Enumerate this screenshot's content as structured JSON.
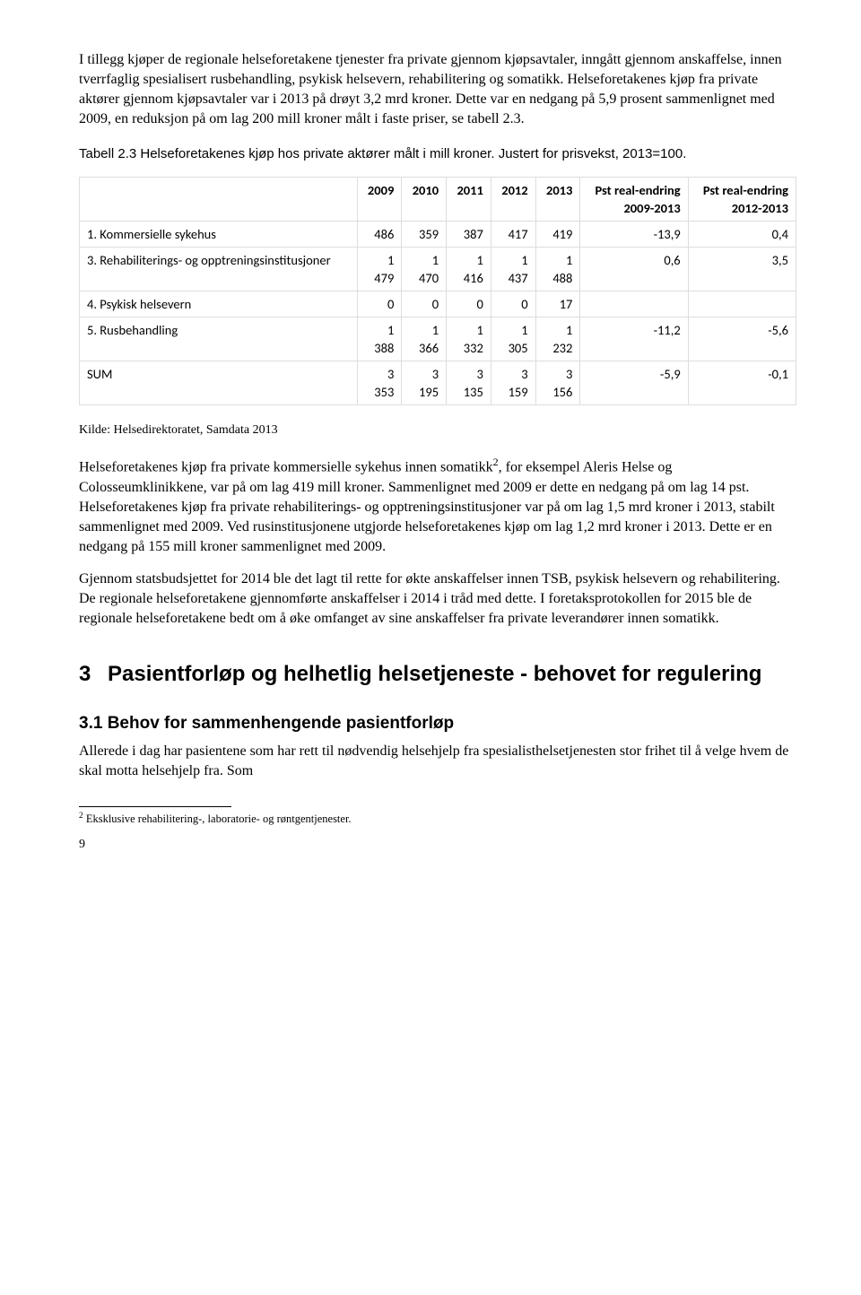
{
  "para1": "I tillegg kjøper de regionale helseforetakene tjenester fra private gjennom kjøpsavtaler, inngått gjennom anskaffelse, innen tverrfaglig spesialisert rusbehandling, psykisk helsevern, rehabilitering og somatikk. Helseforetakenes kjøp fra private aktører gjennom kjøpsavtaler var i 2013 på drøyt 3,2 mrd kroner. Dette var en nedgang på 5,9 prosent sammenlignet med 2009, en reduksjon på om lag 200 mill kroner målt i faste priser, se tabell 2.3.",
  "table_caption": "Tabell 2.3 Helseforetakenes kjøp hos private aktører målt i mill kroner. Justert for prisvekst, 2013=100.",
  "table": {
    "headers": [
      "",
      "2009",
      "2010",
      "2011",
      "2012",
      "2013",
      "Pst real-endring 2009-2013",
      "Pst real-endring 2012-2013"
    ],
    "rows": [
      {
        "label": "1. Kommersielle sykehus",
        "c": [
          "486",
          "359",
          "387",
          "417",
          "419",
          "-13,9",
          "0,4"
        ],
        "twoLine": false
      },
      {
        "label": "3. Rehabiliterings- og opptreningsinstitusjoner",
        "c": [
          "1 479",
          "1 470",
          "1 416",
          "1 437",
          "1 488",
          "0,6",
          "3,5"
        ],
        "twoLine": true
      },
      {
        "label": "4. Psykisk helsevern",
        "c": [
          "0",
          "0",
          "0",
          "0",
          "17",
          "",
          ""
        ],
        "twoLine": false
      },
      {
        "label": "5. Rusbehandling",
        "c": [
          "1 388",
          "1 366",
          "1 332",
          "1 305",
          "1 232",
          "-11,2",
          "-5,6"
        ],
        "twoLine": true
      },
      {
        "label": "SUM",
        "c": [
          "3 353",
          "3 195",
          "3 135",
          "3 159",
          "3 156",
          "-5,9",
          "-0,1"
        ],
        "twoLine": true
      }
    ],
    "border_color": "#dddddd",
    "font_family": "Calibri",
    "font_size": 14.5
  },
  "source": "Kilde: Helsedirektoratet, Samdata 2013",
  "para2_a": "Helseforetakenes kjøp fra private kommersielle sykehus innen somatikk",
  "para2_supref": "2",
  "para2_b": ", for eksempel Aleris Helse og Colosseumklinikkene, var på om lag 419 mill kroner. Sammenlignet med 2009 er dette en nedgang på om lag 14 pst. Helseforetakenes kjøp fra private rehabiliterings- og opptreningsinstitusjoner var på om lag 1,5 mrd kroner i 2013, stabilt sammenlignet med 2009. Ved rusinstitusjonene utgjorde helseforetakenes kjøp om lag 1,2 mrd kroner i 2013. Dette er en nedgang på 155 mill kroner sammenlignet med 2009.",
  "para3": "Gjennom statsbudsjettet for 2014 ble det lagt til rette for økte anskaffelser innen TSB, psykisk helsevern og rehabilitering. De regionale helseforetakene gjennomførte anskaffelser i 2014 i tråd med dette. I foretaksprotokollen for 2015 ble de regionale helseforetakene bedt om å øke omfanget av sine anskaffelser fra private leverandører innen somatikk.",
  "section3_num": "3",
  "section3_title": "Pasientforløp og helhetlig helsetjeneste - behovet for regulering",
  "section31_title": "3.1 Behov for sammenhengende pasientforløp",
  "para4": "Allerede i dag har pasientene som har rett til nødvendig helsehjelp fra spesialisthelsetjenesten stor frihet til å velge hvem de skal motta helsehjelp fra. Som",
  "footnote_marker": "2",
  "footnote_text": " Eksklusive rehabilitering-, laboratorie- og røntgentjenester.",
  "pagenum": "9"
}
